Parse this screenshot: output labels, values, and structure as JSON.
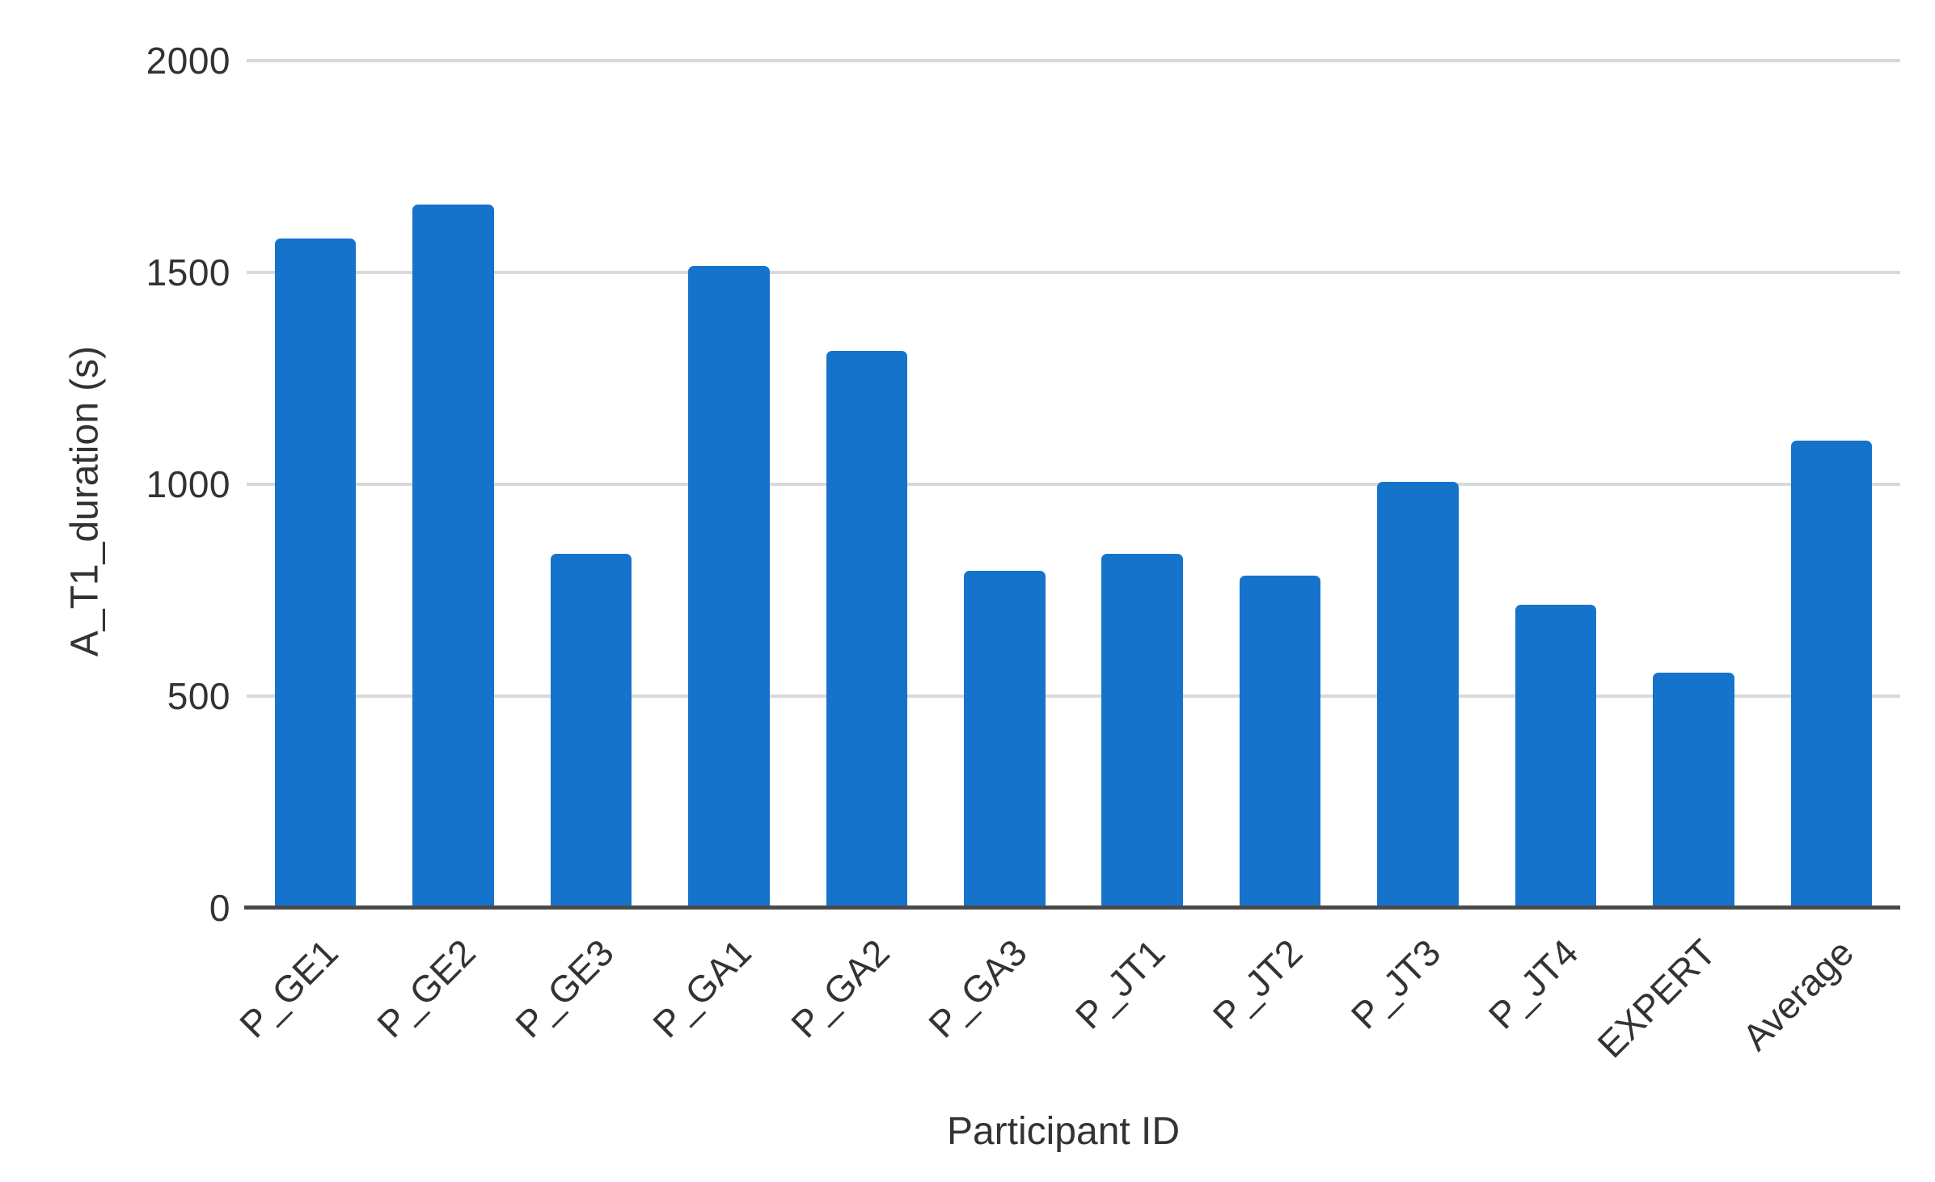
{
  "chart_data": {
    "type": "bar",
    "title": "",
    "xlabel": "Participant ID",
    "ylabel": "A_T1_duration (s)",
    "categories": [
      "P_GE1",
      "P_GE2",
      "P_GE3",
      "P_GA1",
      "P_GA2",
      "P_GA3",
      "P_JT1",
      "P_JT2",
      "P_JT3",
      "P_JT4",
      "EXPERT",
      "Average"
    ],
    "values": [
      1580,
      1660,
      835,
      1515,
      1315,
      795,
      835,
      785,
      1005,
      715,
      555,
      1104
    ],
    "ylim": [
      0,
      2000
    ],
    "yticks": [
      0,
      500,
      1000,
      1500,
      2000
    ],
    "grid": "horizontal",
    "legend": "none",
    "bar_color": "#1673cc",
    "grid_color": "#d9d9d9",
    "axis_line_color": "#4a4a4a",
    "text_color": "#333333"
  }
}
